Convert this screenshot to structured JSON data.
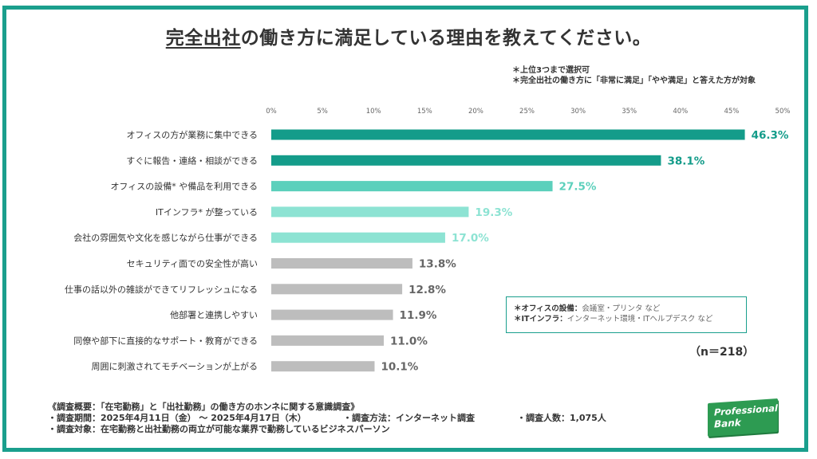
{
  "header": {
    "title_underlined": "完全出社",
    "title_rest": "の働き方に満足している理由を教えてください。"
  },
  "notes": [
    "＊上位3つまで選択可",
    "＊完全出社の働き方に「非常に満足」「やや満足」と答えた方が対象"
  ],
  "chart_data": {
    "type": "bar",
    "orientation": "horizontal",
    "categories": [
      "オフィスの方が業務に集中できる",
      "すぐに報告・連絡・相談ができる",
      "オフィスの設備* や備品を利用できる",
      "ITインフラ* が整っている",
      "会社の雰囲気や文化を感じながら仕事ができる",
      "セキュリティ面での安全性が高い",
      "仕事の話以外の雑談ができてリフレッシュになる",
      "他部署と連携しやすい",
      "同僚や部下に直接的なサポート・教育ができる",
      "周囲に刺激されてモチベーションが上がる"
    ],
    "values": [
      46.3,
      38.1,
      27.5,
      19.3,
      17.0,
      13.8,
      12.8,
      11.9,
      11.0,
      10.1
    ],
    "value_labels": [
      "46.3%",
      "38.1%",
      "27.5%",
      "19.3%",
      "17.0%",
      "13.8%",
      "12.8%",
      "11.9%",
      "11.0%",
      "10.1%"
    ],
    "xlim": [
      0,
      50
    ],
    "tick_labels": [
      "0%",
      "5%",
      "10%",
      "15%",
      "20%",
      "25%",
      "30%",
      "35%",
      "40%",
      "45%",
      "50%"
    ],
    "bar_colors": [
      "#149c8a",
      "#149c8a",
      "#5cd0bc",
      "#8de3d3",
      "#8de3d3",
      "#bdbdbd",
      "#bdbdbd",
      "#bdbdbd",
      "#bdbdbd",
      "#bdbdbd"
    ],
    "label_colors": [
      "#149c8a",
      "#149c8a",
      "#5cd0bc",
      "#8de3d3",
      "#8de3d3",
      "#666666",
      "#666666",
      "#666666",
      "#666666",
      "#666666"
    ],
    "grid": false
  },
  "legend_box": [
    {
      "key": "＊オフィスの設備：",
      "value": "会議室・プリンタ など"
    },
    {
      "key": "＊ITインフラ：",
      "value": "インターネット環境・ITヘルプデスク など"
    }
  ],
  "sample_size": "（n＝218）",
  "survey": {
    "line1": "《調査概要：「在宅勤務」と「出社勤務」の働き方のホンネに関する意識調査》",
    "period": "・調査期間：2025年4月11日（金） 〜 2025年4月17日（木）",
    "method": "・調査方法：インターネット調査",
    "count": "・調査人数：1,075人",
    "target": "・調査対象：在宅勤務と出社勤務の両立が可能な業界で勤務しているビジネスパーソン"
  },
  "logo": {
    "line1": "Professional",
    "line2": "Bank",
    "color": "#2d9b52"
  }
}
